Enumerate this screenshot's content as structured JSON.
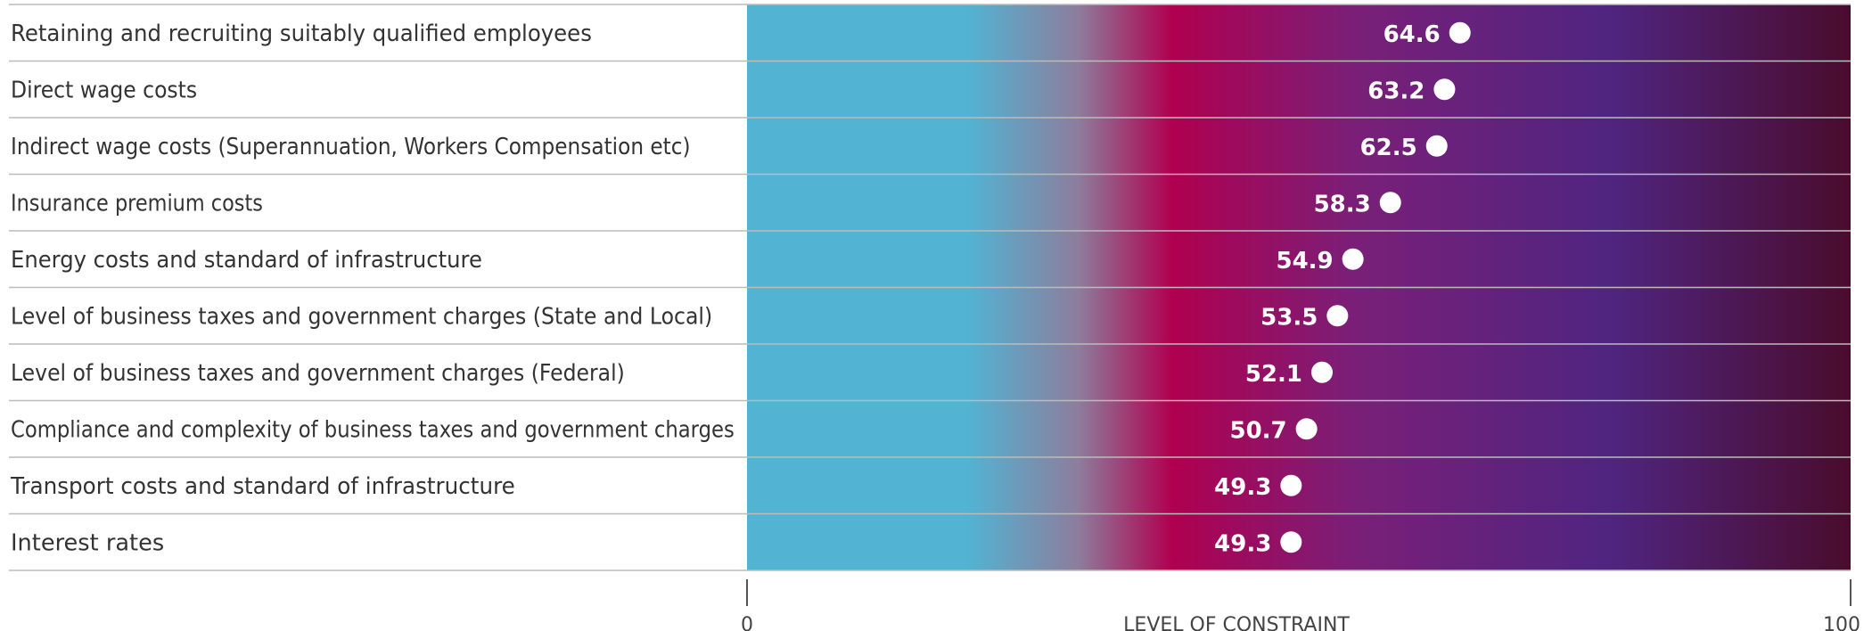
{
  "chart_data": {
    "type": "dot",
    "categories": [
      "Retaining and recruiting suitably qualified employees",
      "Direct wage costs",
      "Indirect wage costs (Superannuation, Workers Compensation etc)",
      "Insurance premium costs",
      "Energy costs and standard of infrastructure",
      "Level of business taxes and government charges (State and Local)",
      "Level of business taxes and government charges (Federal)",
      "Compliance and complexity of business taxes and government charges",
      "Transport costs and standard of infrastructure",
      "Interest rates"
    ],
    "values": [
      64.6,
      63.2,
      62.5,
      58.3,
      54.9,
      53.5,
      52.1,
      50.7,
      49.3,
      49.3
    ],
    "value_labels": [
      "64.6",
      "63.2",
      "62.5",
      "58.3",
      "54.9",
      "53.5",
      "52.1",
      "50.7",
      "49.3",
      "49.3"
    ],
    "xlim": [
      0,
      100
    ],
    "tick_labels": [
      "0",
      "100"
    ],
    "xlabel": "LEVEL OF CONSTRAINT",
    "colors": {
      "gradient_stops": [
        {
          "offset": 0.0,
          "color": "#52b3d3"
        },
        {
          "offset": 0.2,
          "color": "#52b3d3"
        },
        {
          "offset": 0.3,
          "color": "#8d7d9c"
        },
        {
          "offset": 0.385,
          "color": "#b0004f"
        },
        {
          "offset": 0.55,
          "color": "#7a1f78"
        },
        {
          "offset": 0.78,
          "color": "#4f2580"
        },
        {
          "offset": 1.0,
          "color": "#4a0c2d"
        }
      ],
      "dot": "#ffffff",
      "row_line": "#bbbbbb",
      "label_text": "#333333"
    }
  }
}
